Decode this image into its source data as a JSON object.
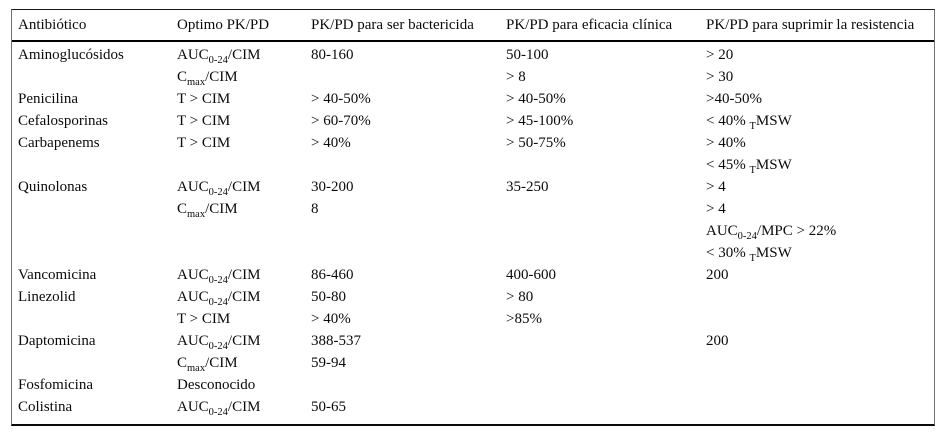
{
  "colors": {
    "background": "#ffffff",
    "text": "#000000",
    "rule": "#000000"
  },
  "table": {
    "columns": [
      "Antibiótico",
      "Optimo PK/PD",
      "PK/PD para ser bactericida",
      "PK/PD para eficacia clínica",
      "PK/PD para suprimir la resistencia"
    ],
    "rows": [
      [
        "Aminoglucósidos",
        "AUC_{0-24}/CIM",
        "80-160",
        "50-100",
        "> 20"
      ],
      [
        "",
        "C_{max}/CIM",
        "",
        "> 8",
        "> 30"
      ],
      [
        "Penicilina",
        "T > CIM",
        "> 40-50%",
        "> 40-50%",
        ">40-50%"
      ],
      [
        "Cefalosporinas",
        "T > CIM",
        "> 60-70%",
        "> 45-100%",
        "< 40% _{T}MSW"
      ],
      [
        "Carbapenems",
        "T > CIM",
        "> 40%",
        "> 50-75%",
        "> 40%"
      ],
      [
        "",
        "",
        "",
        "",
        "< 45% _{T}MSW"
      ],
      [
        "Quinolonas",
        "AUC_{0-24}/CIM",
        "30-200",
        "35-250",
        "> 4"
      ],
      [
        "",
        "C_{max}/CIM",
        "8",
        "",
        "> 4"
      ],
      [
        "",
        "",
        "",
        "",
        "AUC_{0-24}/MPC > 22%"
      ],
      [
        "",
        "",
        "",
        "",
        "< 30% _{T}MSW"
      ],
      [
        "Vancomicina",
        "AUC_{0-24}/CIM",
        "86-460",
        "400-600",
        "200"
      ],
      [
        "Linezolid",
        "AUC_{0-24}/CIM",
        "50-80",
        "> 80",
        ""
      ],
      [
        "",
        "T > CIM",
        "> 40%",
        ">85%",
        ""
      ],
      [
        "Daptomicina",
        "AUC_{0-24}/CIM",
        "388-537",
        "",
        "200"
      ],
      [
        "",
        "C_{max}/CIM",
        "59-94",
        "",
        ""
      ],
      [
        "Fosfomicina",
        "Desconocido",
        "",
        "",
        ""
      ],
      [
        "Colistina",
        "AUC_{0-24}/CIM",
        "50-65",
        "",
        ""
      ]
    ]
  }
}
